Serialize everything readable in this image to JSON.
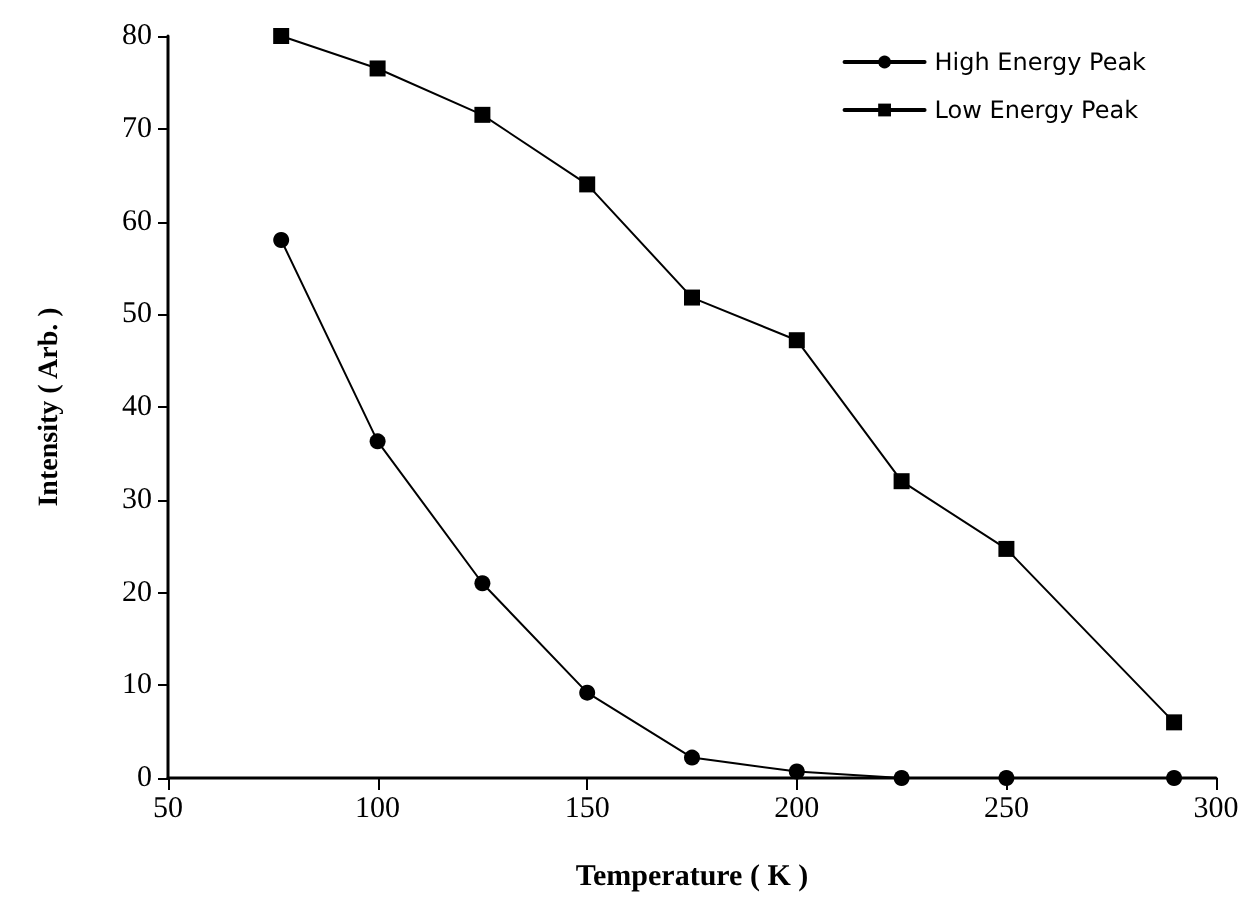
{
  "chart_data": {
    "type": "line",
    "xlabel": "Temperature ( K )",
    "ylabel": "Intensity ( Arb. )",
    "x": [
      77,
      100,
      125,
      150,
      175,
      200,
      225,
      250,
      290
    ],
    "series": [
      {
        "name": "High Energy Peak",
        "color": "#000000",
        "marker": "circle",
        "values": [
          58,
          36.3,
          21,
          9.2,
          2.2,
          0.7,
          0,
          0,
          0
        ]
      },
      {
        "name": "Low Energy Peak",
        "color": "#000000",
        "marker": "square",
        "values": [
          80,
          76.5,
          71.5,
          64,
          51.8,
          47.2,
          32,
          24.7,
          6
        ]
      }
    ],
    "xlim": [
      50,
      300
    ],
    "xticks": [
      50,
      100,
      150,
      200,
      250,
      300
    ],
    "ylim": [
      0,
      80
    ],
    "yticks": [
      0,
      10,
      20,
      30,
      40,
      50,
      60,
      70,
      80
    ],
    "grid": false,
    "legend": "top right",
    "line_style": "solid"
  }
}
